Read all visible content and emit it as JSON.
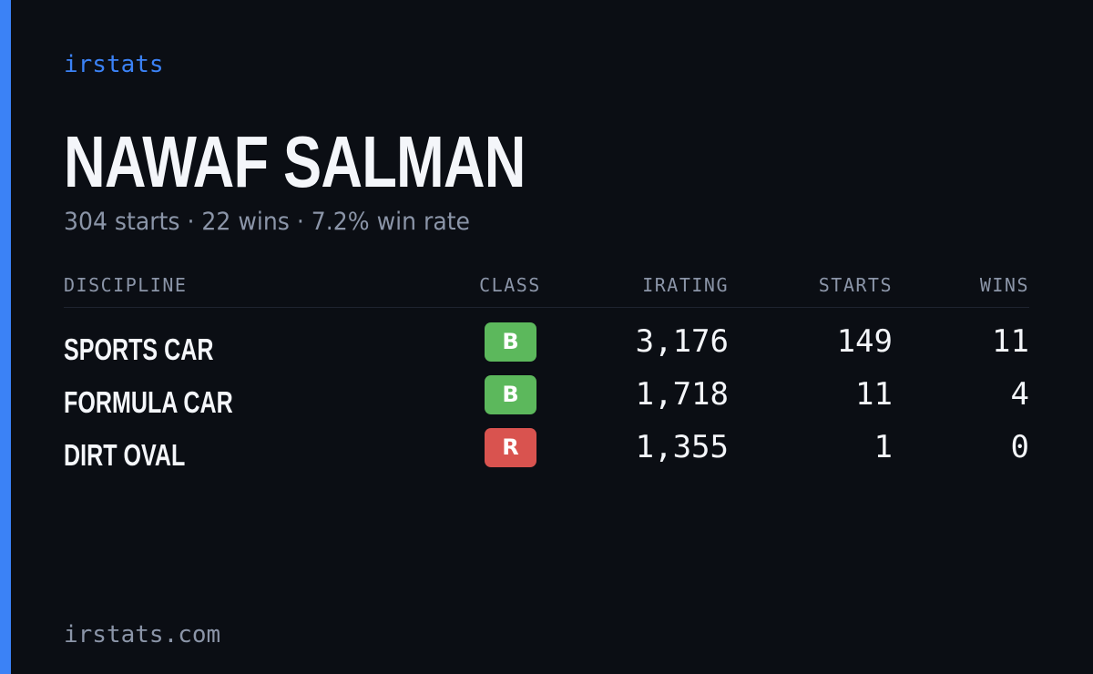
{
  "brand": "irstats",
  "name": "NAWAF SALMAN",
  "summary": "304 starts · 22 wins · 7.2% win rate",
  "table": {
    "headers": [
      "DISCIPLINE",
      "CLASS",
      "IRATING",
      "STARTS",
      "WINS"
    ],
    "rows": [
      [
        "SPORTS CAR",
        "B",
        "3,176",
        "149",
        "11"
      ],
      [
        "FORMULA CAR",
        "B",
        "1,718",
        "11",
        "4"
      ],
      [
        "DIRT OVAL",
        "R",
        "1,355",
        "1",
        "0"
      ]
    ]
  },
  "class_colors": {
    "B": "#5cb85c",
    "R": "#d9534f"
  },
  "footer": "irstats.com"
}
